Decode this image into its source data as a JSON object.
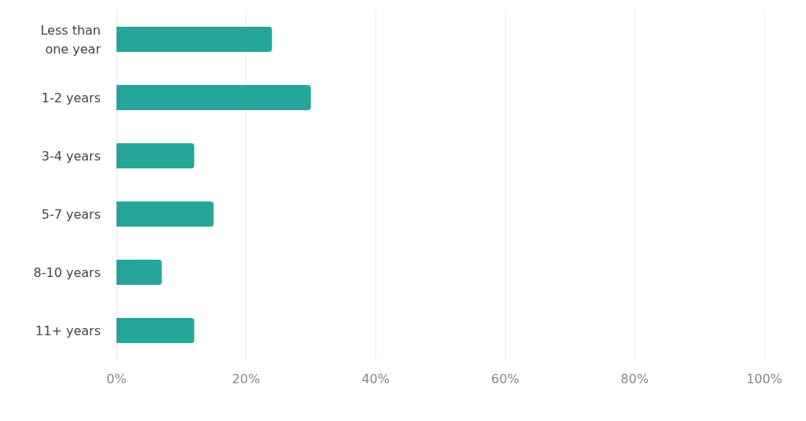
{
  "chart_data": {
    "type": "bar",
    "orientation": "horizontal",
    "categories": [
      "Less than one year",
      "1-2 years",
      "3-4 years",
      "5-7 years",
      "8-10 years",
      "11+ years"
    ],
    "values": [
      24,
      30,
      12,
      15,
      7,
      12
    ],
    "color": "#26a69a",
    "xlim": [
      0,
      100
    ],
    "xticks": [
      {
        "value": 0,
        "label": "0%"
      },
      {
        "value": 20,
        "label": "20%"
      },
      {
        "value": 40,
        "label": "40%"
      },
      {
        "value": 60,
        "label": "60%"
      },
      {
        "value": 80,
        "label": "80%"
      },
      {
        "value": 100,
        "label": "100%"
      }
    ],
    "grid": "x"
  }
}
